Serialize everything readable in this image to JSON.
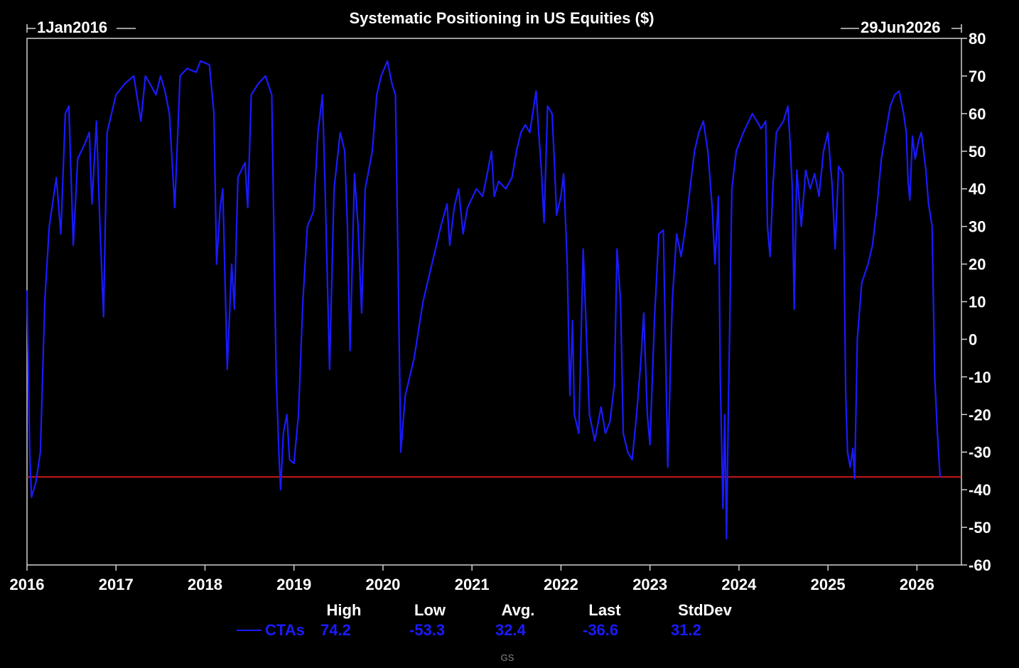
{
  "chart_data": {
    "type": "line",
    "title": "Systematic Positioning in US Equities ($)",
    "start_label": "1Jan2016",
    "end_label": "29Jun2026",
    "x_range": [
      2016.0,
      2026.5
    ],
    "ylim": [
      -60,
      80
    ],
    "y_ticks": [
      80,
      70,
      60,
      50,
      40,
      30,
      20,
      10,
      0,
      -10,
      -20,
      -30,
      -40,
      -50,
      -60
    ],
    "x_ticks": [
      2016,
      2017,
      2018,
      2019,
      2020,
      2021,
      2022,
      2023,
      2024,
      2025,
      2026
    ],
    "x_tick_labels": [
      "2016",
      "2017",
      "2018",
      "2019",
      "2020",
      "2021",
      "2022",
      "2023",
      "2024",
      "2025",
      "2026"
    ],
    "reference_line": {
      "value": -36.6,
      "color": "#ff2020"
    },
    "series": [
      {
        "name": "CTAs",
        "color": "#1a1aff",
        "points": [
          [
            2016.0,
            13.0
          ],
          [
            2016.03,
            -30.0
          ],
          [
            2016.05,
            -42.0
          ],
          [
            2016.1,
            -38.0
          ],
          [
            2016.15,
            -30.0
          ],
          [
            2016.2,
            10.0
          ],
          [
            2016.25,
            30.0
          ],
          [
            2016.33,
            43.0
          ],
          [
            2016.38,
            28.0
          ],
          [
            2016.43,
            60.0
          ],
          [
            2016.47,
            62.0
          ],
          [
            2016.52,
            25.0
          ],
          [
            2016.57,
            48.0
          ],
          [
            2016.65,
            52.0
          ],
          [
            2016.7,
            55.0
          ],
          [
            2016.73,
            36.0
          ],
          [
            2016.78,
            58.0
          ],
          [
            2016.82,
            30.0
          ],
          [
            2016.86,
            6.0
          ],
          [
            2016.9,
            55.0
          ],
          [
            2016.95,
            60.0
          ],
          [
            2017.0,
            65.0
          ],
          [
            2017.1,
            68.0
          ],
          [
            2017.2,
            70.0
          ],
          [
            2017.28,
            58.0
          ],
          [
            2017.33,
            70.0
          ],
          [
            2017.38,
            68.0
          ],
          [
            2017.45,
            65.0
          ],
          [
            2017.5,
            70.0
          ],
          [
            2017.55,
            66.0
          ],
          [
            2017.6,
            60.0
          ],
          [
            2017.66,
            35.0
          ],
          [
            2017.72,
            70.0
          ],
          [
            2017.8,
            72.0
          ],
          [
            2017.9,
            71.0
          ],
          [
            2017.95,
            74.0
          ],
          [
            2018.05,
            73.0
          ],
          [
            2018.1,
            60.0
          ],
          [
            2018.13,
            20.0
          ],
          [
            2018.17,
            35.0
          ],
          [
            2018.2,
            40.0
          ],
          [
            2018.25,
            -8.0
          ],
          [
            2018.3,
            20.0
          ],
          [
            2018.33,
            8.0
          ],
          [
            2018.37,
            43.0
          ],
          [
            2018.45,
            47.0
          ],
          [
            2018.48,
            35.0
          ],
          [
            2018.52,
            65.0
          ],
          [
            2018.6,
            68.0
          ],
          [
            2018.68,
            70.0
          ],
          [
            2018.75,
            65.0
          ],
          [
            2018.8,
            -10.0
          ],
          [
            2018.83,
            -30.0
          ],
          [
            2018.85,
            -40.0
          ],
          [
            2018.88,
            -25.0
          ],
          [
            2018.92,
            -20.0
          ],
          [
            2018.95,
            -32.0
          ],
          [
            2019.0,
            -33.0
          ],
          [
            2019.05,
            -20.0
          ],
          [
            2019.1,
            10.0
          ],
          [
            2019.15,
            30.0
          ],
          [
            2019.22,
            34.0
          ],
          [
            2019.27,
            55.0
          ],
          [
            2019.32,
            65.0
          ],
          [
            2019.35,
            40.0
          ],
          [
            2019.4,
            -8.0
          ],
          [
            2019.45,
            40.0
          ],
          [
            2019.52,
            55.0
          ],
          [
            2019.57,
            50.0
          ],
          [
            2019.6,
            30.0
          ],
          [
            2019.63,
            -3.0
          ],
          [
            2019.68,
            44.0
          ],
          [
            2019.72,
            30.0
          ],
          [
            2019.76,
            7.0
          ],
          [
            2019.8,
            40.0
          ],
          [
            2019.88,
            50.0
          ],
          [
            2019.93,
            65.0
          ],
          [
            2019.98,
            70.0
          ],
          [
            2020.05,
            74.0
          ],
          [
            2020.1,
            68.0
          ],
          [
            2020.14,
            65.0
          ],
          [
            2020.17,
            20.0
          ],
          [
            2020.2,
            -30.0
          ],
          [
            2020.25,
            -15.0
          ],
          [
            2020.35,
            -5.0
          ],
          [
            2020.45,
            10.0
          ],
          [
            2020.55,
            20.0
          ],
          [
            2020.65,
            30.0
          ],
          [
            2020.72,
            36.0
          ],
          [
            2020.75,
            25.0
          ],
          [
            2020.8,
            35.0
          ],
          [
            2020.85,
            40.0
          ],
          [
            2020.9,
            28.0
          ],
          [
            2020.95,
            35.0
          ],
          [
            2021.05,
            40.0
          ],
          [
            2021.12,
            38.0
          ],
          [
            2021.18,
            45.0
          ],
          [
            2021.22,
            50.0
          ],
          [
            2021.25,
            38.0
          ],
          [
            2021.3,
            42.0
          ],
          [
            2021.38,
            40.0
          ],
          [
            2021.45,
            43.0
          ],
          [
            2021.5,
            50.0
          ],
          [
            2021.55,
            55.0
          ],
          [
            2021.6,
            57.0
          ],
          [
            2021.65,
            55.0
          ],
          [
            2021.72,
            66.0
          ],
          [
            2021.75,
            55.0
          ],
          [
            2021.78,
            45.0
          ],
          [
            2021.81,
            31.0
          ],
          [
            2021.85,
            62.0
          ],
          [
            2021.9,
            60.0
          ],
          [
            2021.93,
            45.0
          ],
          [
            2021.95,
            33.0
          ],
          [
            2022.0,
            38.0
          ],
          [
            2022.03,
            44.0
          ],
          [
            2022.07,
            20.0
          ],
          [
            2022.1,
            -15.0
          ],
          [
            2022.13,
            5.0
          ],
          [
            2022.15,
            -20.0
          ],
          [
            2022.2,
            -25.0
          ],
          [
            2022.25,
            24.0
          ],
          [
            2022.28,
            5.0
          ],
          [
            2022.32,
            -20.0
          ],
          [
            2022.38,
            -27.0
          ],
          [
            2022.45,
            -18.0
          ],
          [
            2022.5,
            -25.0
          ],
          [
            2022.55,
            -22.0
          ],
          [
            2022.6,
            -12.0
          ],
          [
            2022.63,
            24.0
          ],
          [
            2022.67,
            10.0
          ],
          [
            2022.7,
            -25.0
          ],
          [
            2022.75,
            -30.0
          ],
          [
            2022.8,
            -32.0
          ],
          [
            2022.85,
            -20.0
          ],
          [
            2022.9,
            -5.0
          ],
          [
            2022.93,
            7.0
          ],
          [
            2022.97,
            -20.0
          ],
          [
            2023.0,
            -28.0
          ],
          [
            2023.05,
            5.0
          ],
          [
            2023.1,
            28.0
          ],
          [
            2023.15,
            29.0
          ],
          [
            2023.2,
            -34.0
          ],
          [
            2023.25,
            10.0
          ],
          [
            2023.3,
            28.0
          ],
          [
            2023.35,
            22.0
          ],
          [
            2023.4,
            30.0
          ],
          [
            2023.45,
            40.0
          ],
          [
            2023.5,
            50.0
          ],
          [
            2023.55,
            55.0
          ],
          [
            2023.6,
            58.0
          ],
          [
            2023.65,
            50.0
          ],
          [
            2023.7,
            35.0
          ],
          [
            2023.73,
            20.0
          ],
          [
            2023.77,
            38.0
          ],
          [
            2023.79,
            -10.0
          ],
          [
            2023.82,
            -45.0
          ],
          [
            2023.84,
            -20.0
          ],
          [
            2023.86,
            -53.0
          ],
          [
            2023.88,
            -20.0
          ],
          [
            2023.92,
            40.0
          ],
          [
            2023.97,
            50.0
          ],
          [
            2024.05,
            55.0
          ],
          [
            2024.15,
            60.0
          ],
          [
            2024.2,
            58.0
          ],
          [
            2024.25,
            56.0
          ],
          [
            2024.3,
            58.0
          ],
          [
            2024.32,
            30.0
          ],
          [
            2024.35,
            22.0
          ],
          [
            2024.38,
            40.0
          ],
          [
            2024.42,
            55.0
          ],
          [
            2024.5,
            58.0
          ],
          [
            2024.55,
            62.0
          ],
          [
            2024.58,
            50.0
          ],
          [
            2024.6,
            40.0
          ],
          [
            2024.62,
            8.0
          ],
          [
            2024.65,
            45.0
          ],
          [
            2024.7,
            30.0
          ],
          [
            2024.75,
            45.0
          ],
          [
            2024.8,
            40.0
          ],
          [
            2024.85,
            44.0
          ],
          [
            2024.9,
            38.0
          ],
          [
            2024.95,
            50.0
          ],
          [
            2025.0,
            55.0
          ],
          [
            2025.05,
            40.0
          ],
          [
            2025.08,
            24.0
          ],
          [
            2025.12,
            46.0
          ],
          [
            2025.17,
            44.0
          ],
          [
            2025.2,
            -15.0
          ],
          [
            2025.22,
            -30.0
          ],
          [
            2025.25,
            -34.0
          ],
          [
            2025.28,
            -29.0
          ],
          [
            2025.3,
            -37.0
          ],
          [
            2025.33,
            0.0
          ],
          [
            2025.38,
            15.0
          ],
          [
            2025.45,
            20.0
          ],
          [
            2025.5,
            25.0
          ],
          [
            2025.55,
            35.0
          ],
          [
            2025.6,
            48.0
          ],
          [
            2025.65,
            55.0
          ],
          [
            2025.7,
            62.0
          ],
          [
            2025.75,
            65.0
          ],
          [
            2025.8,
            66.0
          ],
          [
            2025.85,
            60.0
          ],
          [
            2025.88,
            55.0
          ],
          [
            2025.9,
            42.0
          ],
          [
            2025.92,
            37.0
          ],
          [
            2025.95,
            54.0
          ],
          [
            2025.98,
            48.0
          ],
          [
            2026.02,
            53.0
          ],
          [
            2026.05,
            55.0
          ],
          [
            2026.1,
            45.0
          ],
          [
            2026.13,
            36.0
          ],
          [
            2026.17,
            30.0
          ],
          [
            2026.2,
            -10.0
          ],
          [
            2026.23,
            -25.0
          ],
          [
            2026.26,
            -36.6
          ]
        ]
      }
    ],
    "stats": {
      "headers": [
        "High",
        "Low",
        "Avg.",
        "Last",
        "StdDev"
      ],
      "series_label": "CTAs",
      "values": [
        "74.2",
        "-53.3",
        "32.4",
        "-36.6",
        "31.2"
      ]
    },
    "source": "GS"
  }
}
